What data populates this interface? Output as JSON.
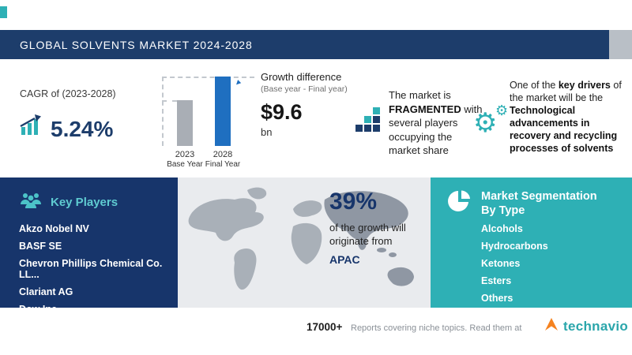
{
  "colors": {
    "navy": "#1d3d6b",
    "teal": "#2eb0b5",
    "blue_bar": "#1f6fc0",
    "gray_bar": "#a9aeb5",
    "orange": "#f5821f"
  },
  "header": {
    "title": "GLOBAL SOLVENTS MARKET 2024-2028"
  },
  "cagr": {
    "label": "CAGR of (2023-2028)",
    "value": "5.24%"
  },
  "growth": {
    "title": "Growth difference",
    "subtitle": "(Base year - Final year)",
    "value": "$9.6",
    "unit": "bn",
    "bars": [
      {
        "year": "2023",
        "label": "Base Year"
      },
      {
        "year": "2028",
        "label": "Final Year"
      }
    ]
  },
  "fragmented": {
    "before": "The market is ",
    "highlight": "FRAGMENTED",
    "after": " with several players occupying the market share"
  },
  "key_driver": {
    "before": "One of the ",
    "bold1": "key drivers",
    "middle": " of the market will be the ",
    "bold2": "Technological advancements in recovery and recycling processes of solvents"
  },
  "key_players": {
    "title": "Key Players",
    "items": [
      "Akzo Nobel NV",
      "BASF SE",
      "Chevron Phillips Chemical Co. LL...",
      "Clariant AG",
      "Dow Inc."
    ]
  },
  "regional": {
    "value": "39%",
    "line1": "of the growth will",
    "line2": "originate from",
    "region": "APAC"
  },
  "segmentation": {
    "title_line1": "Market Segmentation",
    "title_line2": "By Type",
    "items": [
      "Alcohols",
      "Hydrocarbons",
      "Ketones",
      "Esters",
      "Others"
    ]
  },
  "footer": {
    "count": "17000+",
    "text": "Reports covering niche topics. Read them at",
    "brand": "technavio"
  },
  "chart_data": {
    "type": "bar",
    "title": "Growth difference (Base year - Final year)",
    "categories": [
      "2023 Base Year",
      "2028 Final Year"
    ],
    "values_relative": [
      0.66,
      1.0
    ],
    "growth_difference": "$9.6 bn",
    "bar_colors": [
      "#a9aeb5",
      "#1f6fc0"
    ],
    "legend": "none",
    "axes": "none",
    "note": "Absolute market-size values are not labeled in the figure; only the growth difference of $9.6 bn between base year 2023 and final year 2028 is shown."
  }
}
